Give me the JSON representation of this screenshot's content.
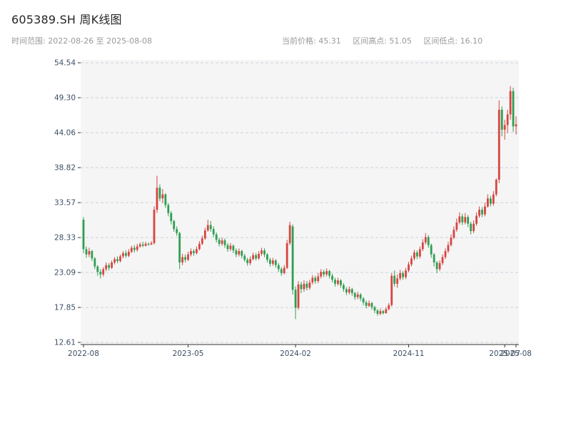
{
  "header": {
    "title": "605389.SH 周K线图",
    "time_range": "时间范围: 2022-08-26 至 2025-08-08",
    "stats": {
      "current": "当前价格: 45.31",
      "high": "区间高点: 51.05",
      "low": "区间低点: 16.10"
    }
  },
  "chart_data": {
    "type": "candlestick",
    "title": "605389.SH 周K线图",
    "symbol": "605389.SH",
    "period": "weekly",
    "start_date": "2022-08-26",
    "end_date": "2025-08-08",
    "current_price": 45.31,
    "range_high": 51.05,
    "range_low": 16.1,
    "ylim": [
      12.61,
      54.54
    ],
    "grid": "horizontal-dashed",
    "y_ticks": [
      {
        "value": 12.61,
        "label": "12.61"
      },
      {
        "value": 17.85,
        "label": "17.85"
      },
      {
        "value": 23.09,
        "label": "23.09"
      },
      {
        "value": 28.33,
        "label": "28.33"
      },
      {
        "value": 33.57,
        "label": "33.57"
      },
      {
        "value": 38.82,
        "label": "38.82"
      },
      {
        "value": 44.06,
        "label": "44.06"
      },
      {
        "value": 49.3,
        "label": "49.30"
      },
      {
        "value": 54.54,
        "label": "54.54"
      }
    ],
    "x_ticks": [
      {
        "index": 0,
        "label": "2022-08"
      },
      {
        "index": 37,
        "label": "2023-05"
      },
      {
        "index": 75,
        "label": "2024-02"
      },
      {
        "index": 115,
        "label": "2024-11"
      },
      {
        "index": 149,
        "label": "2025-07"
      },
      {
        "index": 153,
        "label": "2025-08"
      }
    ],
    "colors": {
      "up": "#d6453f",
      "down": "#2f9e52",
      "plot_bg": "#f5f5f5",
      "grid": "#c9d2e0",
      "tick_text": "#3d4f63",
      "axis_line": "#333333"
    },
    "candle_format": "[open, high, low, close]",
    "candles": [
      [
        31.0,
        31.4,
        26.0,
        26.6
      ],
      [
        26.6,
        27.0,
        25.3,
        25.8
      ],
      [
        25.8,
        26.8,
        25.4,
        26.3
      ],
      [
        26.3,
        26.5,
        24.8,
        25.2
      ],
      [
        25.2,
        25.4,
        23.6,
        24.0
      ],
      [
        24.0,
        24.2,
        22.6,
        23.2
      ],
      [
        23.2,
        23.6,
        22.2,
        22.8
      ],
      [
        22.8,
        23.9,
        22.5,
        23.6
      ],
      [
        23.6,
        24.6,
        23.3,
        24.2
      ],
      [
        24.2,
        24.5,
        23.4,
        23.8
      ],
      [
        23.8,
        24.9,
        23.6,
        24.6
      ],
      [
        24.6,
        25.4,
        24.3,
        25.1
      ],
      [
        25.1,
        25.5,
        24.5,
        24.8
      ],
      [
        24.8,
        25.8,
        24.6,
        25.5
      ],
      [
        25.5,
        26.3,
        25.2,
        26.0
      ],
      [
        26.0,
        26.4,
        25.3,
        25.6
      ],
      [
        25.6,
        26.6,
        25.4,
        26.2
      ],
      [
        26.2,
        27.1,
        26.0,
        26.8
      ],
      [
        26.8,
        27.2,
        26.1,
        26.5
      ],
      [
        26.5,
        27.4,
        26.2,
        27.0
      ],
      [
        27.0,
        27.6,
        26.8,
        27.3
      ],
      [
        27.3,
        27.7,
        26.9,
        27.1
      ],
      [
        27.1,
        27.7,
        27.0,
        27.4
      ],
      [
        27.4,
        27.6,
        27.1,
        27.3
      ],
      [
        27.3,
        27.8,
        27.2,
        27.5
      ],
      [
        27.5,
        33.0,
        27.3,
        32.5
      ],
      [
        32.5,
        37.6,
        32.0,
        35.8
      ],
      [
        35.8,
        36.3,
        33.8,
        34.2
      ],
      [
        34.2,
        35.6,
        33.5,
        34.8
      ],
      [
        34.8,
        35.0,
        32.8,
        33.2
      ],
      [
        33.2,
        33.5,
        31.5,
        32.0
      ],
      [
        32.0,
        32.3,
        30.3,
        30.8
      ],
      [
        30.8,
        31.0,
        29.2,
        29.6
      ],
      [
        29.6,
        30.0,
        28.6,
        29.0
      ],
      [
        29.0,
        29.2,
        23.6,
        24.6
      ],
      [
        24.6,
        25.9,
        24.2,
        25.4
      ],
      [
        25.4,
        25.8,
        24.6,
        25.0
      ],
      [
        25.0,
        26.2,
        24.8,
        25.8
      ],
      [
        25.8,
        26.7,
        25.5,
        26.3
      ],
      [
        26.3,
        26.6,
        25.6,
        26.0
      ],
      [
        26.0,
        27.0,
        25.8,
        26.6
      ],
      [
        26.6,
        27.8,
        26.4,
        27.4
      ],
      [
        27.4,
        28.6,
        27.2,
        28.2
      ],
      [
        28.2,
        29.8,
        28.0,
        29.4
      ],
      [
        29.4,
        31.0,
        29.2,
        30.2
      ],
      [
        30.2,
        30.8,
        29.2,
        29.6
      ],
      [
        29.6,
        30.0,
        28.4,
        28.8
      ],
      [
        28.8,
        29.1,
        27.6,
        28.0
      ],
      [
        28.0,
        28.3,
        27.0,
        27.4
      ],
      [
        27.4,
        28.3,
        27.1,
        27.9
      ],
      [
        27.9,
        28.2,
        26.8,
        27.2
      ],
      [
        27.2,
        27.5,
        26.2,
        26.6
      ],
      [
        26.6,
        27.5,
        26.3,
        27.1
      ],
      [
        27.1,
        27.3,
        26.0,
        26.4
      ],
      [
        26.4,
        26.7,
        25.4,
        25.8
      ],
      [
        25.8,
        26.7,
        25.5,
        26.3
      ],
      [
        26.3,
        26.5,
        25.2,
        25.6
      ],
      [
        25.6,
        25.9,
        24.7,
        25.0
      ],
      [
        25.0,
        25.3,
        24.1,
        24.5
      ],
      [
        24.5,
        25.5,
        24.2,
        25.1
      ],
      [
        25.1,
        26.1,
        24.9,
        25.7
      ],
      [
        25.7,
        26.0,
        24.9,
        25.2
      ],
      [
        25.2,
        26.3,
        25.0,
        25.9
      ],
      [
        25.9,
        26.8,
        25.6,
        26.4
      ],
      [
        26.4,
        26.7,
        25.4,
        25.8
      ],
      [
        25.8,
        26.0,
        24.6,
        25.0
      ],
      [
        25.0,
        25.3,
        24.0,
        24.4
      ],
      [
        24.4,
        25.3,
        24.1,
        24.9
      ],
      [
        24.9,
        25.1,
        23.8,
        24.2
      ],
      [
        24.2,
        24.5,
        23.2,
        23.6
      ],
      [
        23.6,
        23.9,
        22.6,
        23.0
      ],
      [
        23.0,
        24.2,
        22.8,
        23.8
      ],
      [
        23.8,
        28.0,
        23.6,
        27.5
      ],
      [
        27.5,
        30.7,
        27.2,
        30.2
      ],
      [
        30.0,
        30.3,
        19.8,
        20.5
      ],
      [
        20.5,
        21.0,
        16.1,
        17.8
      ],
      [
        17.8,
        21.8,
        17.5,
        21.3
      ],
      [
        21.3,
        21.7,
        20.0,
        20.6
      ],
      [
        20.6,
        21.9,
        20.2,
        21.4
      ],
      [
        21.4,
        21.8,
        20.4,
        20.8
      ],
      [
        20.8,
        22.0,
        20.5,
        21.6
      ],
      [
        21.6,
        22.7,
        21.3,
        22.3
      ],
      [
        22.3,
        22.6,
        21.4,
        21.8
      ],
      [
        21.8,
        23.0,
        21.5,
        22.5
      ],
      [
        22.5,
        23.6,
        22.2,
        23.2
      ],
      [
        23.2,
        23.5,
        22.4,
        22.8
      ],
      [
        22.8,
        23.7,
        22.5,
        23.3
      ],
      [
        23.3,
        23.5,
        22.2,
        22.6
      ],
      [
        22.6,
        22.9,
        21.6,
        22.0
      ],
      [
        22.0,
        22.3,
        21.0,
        21.4
      ],
      [
        21.4,
        22.3,
        21.1,
        21.9
      ],
      [
        21.9,
        22.1,
        20.8,
        21.2
      ],
      [
        21.2,
        21.5,
        20.2,
        20.6
      ],
      [
        20.6,
        20.9,
        19.7,
        20.1
      ],
      [
        20.1,
        21.0,
        19.8,
        20.6
      ],
      [
        20.6,
        20.8,
        19.6,
        20.0
      ],
      [
        20.0,
        20.2,
        19.0,
        19.4
      ],
      [
        19.4,
        20.2,
        19.1,
        19.8
      ],
      [
        19.8,
        20.0,
        18.8,
        19.2
      ],
      [
        19.2,
        19.4,
        18.2,
        18.6
      ],
      [
        18.6,
        18.9,
        17.7,
        18.1
      ],
      [
        18.1,
        18.9,
        17.9,
        18.5
      ],
      [
        18.5,
        18.7,
        17.5,
        17.9
      ],
      [
        17.9,
        18.1,
        17.0,
        17.4
      ],
      [
        17.4,
        17.6,
        16.6,
        16.9
      ],
      [
        16.9,
        17.7,
        16.7,
        17.3
      ],
      [
        17.3,
        17.5,
        16.8,
        17.0
      ],
      [
        17.0,
        17.9,
        16.9,
        17.6
      ],
      [
        17.6,
        18.5,
        17.4,
        18.2
      ],
      [
        18.2,
        23.0,
        18.0,
        22.6
      ],
      [
        22.6,
        23.4,
        21.0,
        21.4
      ],
      [
        21.4,
        22.8,
        20.8,
        22.2
      ],
      [
        22.2,
        23.5,
        21.9,
        23.0
      ],
      [
        23.0,
        23.3,
        22.0,
        22.4
      ],
      [
        22.4,
        23.8,
        22.1,
        23.4
      ],
      [
        23.4,
        24.7,
        23.1,
        24.3
      ],
      [
        24.3,
        25.6,
        24.0,
        25.2
      ],
      [
        25.2,
        26.5,
        24.9,
        26.1
      ],
      [
        26.1,
        26.4,
        25.1,
        25.5
      ],
      [
        25.5,
        27.0,
        25.2,
        26.6
      ],
      [
        26.6,
        28.1,
        26.3,
        27.6
      ],
      [
        27.6,
        29.0,
        27.3,
        28.4
      ],
      [
        28.4,
        28.7,
        26.8,
        27.2
      ],
      [
        27.2,
        27.4,
        25.3,
        25.8
      ],
      [
        25.8,
        26.0,
        24.0,
        24.6
      ],
      [
        24.6,
        24.8,
        23.0,
        23.6
      ],
      [
        23.6,
        24.9,
        23.3,
        24.5
      ],
      [
        24.5,
        25.8,
        24.2,
        25.4
      ],
      [
        25.4,
        26.7,
        25.1,
        26.3
      ],
      [
        26.3,
        27.7,
        26.0,
        27.2
      ],
      [
        27.2,
        28.8,
        27.0,
        28.3
      ],
      [
        28.3,
        30.0,
        28.1,
        29.5
      ],
      [
        29.5,
        31.2,
        29.2,
        30.6
      ],
      [
        30.6,
        32.1,
        30.3,
        31.5
      ],
      [
        31.5,
        31.9,
        30.2,
        30.6
      ],
      [
        30.6,
        32.0,
        30.3,
        31.4
      ],
      [
        31.4,
        31.7,
        29.9,
        30.4
      ],
      [
        30.4,
        30.7,
        28.8,
        29.3
      ],
      [
        29.3,
        30.9,
        29.0,
        30.4
      ],
      [
        30.4,
        32.1,
        30.1,
        31.6
      ],
      [
        31.6,
        33.0,
        31.3,
        32.5
      ],
      [
        32.5,
        32.9,
        31.4,
        31.8
      ],
      [
        31.8,
        33.6,
        31.5,
        33.0
      ],
      [
        33.0,
        34.8,
        32.8,
        34.2
      ],
      [
        34.2,
        34.6,
        33.0,
        33.4
      ],
      [
        33.4,
        35.3,
        33.1,
        34.8
      ],
      [
        34.8,
        37.2,
        34.5,
        37.0
      ],
      [
        37.0,
        48.9,
        36.5,
        47.5
      ],
      [
        47.5,
        48.0,
        43.5,
        44.5
      ],
      [
        44.5,
        46.0,
        43.0,
        45.2
      ],
      [
        45.2,
        47.5,
        44.0,
        46.8
      ],
      [
        46.8,
        51.05,
        46.0,
        50.3
      ],
      [
        50.3,
        50.8,
        44.2,
        45.0
      ],
      [
        45.0,
        46.5,
        43.8,
        45.31
      ]
    ]
  }
}
